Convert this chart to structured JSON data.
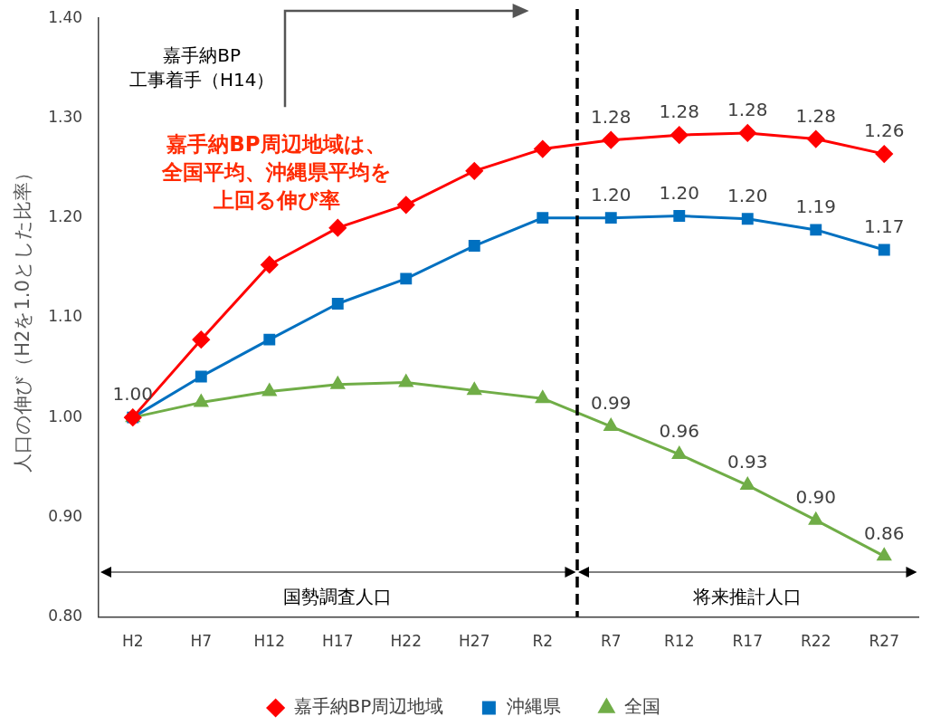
{
  "chart_data": {
    "type": "line",
    "ylabel": "人口の伸び（H2を1.0とした比率）",
    "categories": [
      "H2",
      "H7",
      "H12",
      "H17",
      "H22",
      "H27",
      "R2",
      "R7",
      "R12",
      "R17",
      "R22",
      "R27"
    ],
    "ylim": [
      0.8,
      1.4
    ],
    "yticks": [
      {
        "value": 0.8,
        "label": "0.80"
      },
      {
        "value": 0.9,
        "label": "0.90"
      },
      {
        "value": 1.0,
        "label": "1.00"
      },
      {
        "value": 1.1,
        "label": "1.10"
      },
      {
        "value": 1.2,
        "label": "1.20"
      },
      {
        "value": 1.3,
        "label": "1.30"
      },
      {
        "value": 1.4,
        "label": "1.40"
      }
    ],
    "grid": false,
    "legend": "bottom",
    "line_style": "solid",
    "series": [
      {
        "name": "嘉手納BP周辺地域",
        "color": "#ff0000",
        "marker": "diamond",
        "values": [
          1.0,
          1.078,
          1.153,
          1.19,
          1.213,
          1.247,
          1.269,
          1.278,
          1.283,
          1.285,
          1.279,
          1.264
        ],
        "value_labels": [
          null,
          null,
          null,
          null,
          null,
          null,
          null,
          "1.28",
          "1.28",
          "1.28",
          "1.28",
          "1.26"
        ]
      },
      {
        "name": "沖縄県",
        "color": "#0070c0",
        "marker": "square",
        "values": [
          1.0,
          1.041,
          1.078,
          1.114,
          1.139,
          1.172,
          1.2,
          1.2,
          1.202,
          1.199,
          1.188,
          1.168
        ],
        "value_labels": [
          null,
          null,
          null,
          null,
          null,
          null,
          null,
          "1.20",
          "1.20",
          "1.20",
          "1.19",
          "1.17"
        ]
      },
      {
        "name": "全国",
        "color": "#70ad47",
        "marker": "triangle",
        "values": [
          1.0,
          1.015,
          1.026,
          1.033,
          1.035,
          1.027,
          1.019,
          0.991,
          0.963,
          0.932,
          0.897,
          0.861
        ],
        "value_labels": [
          "1.00",
          null,
          null,
          null,
          null,
          null,
          null,
          "0.99",
          "0.96",
          "0.93",
          "0.90",
          "0.86"
        ]
      }
    ],
    "annotations": [
      "嘉手納BP周辺地域は、全国平均、沖縄県平均を上回る伸び率",
      "嘉手納BP\n工事着手（H14）",
      "国勢調査人口",
      "将来推計人口"
    ]
  }
}
